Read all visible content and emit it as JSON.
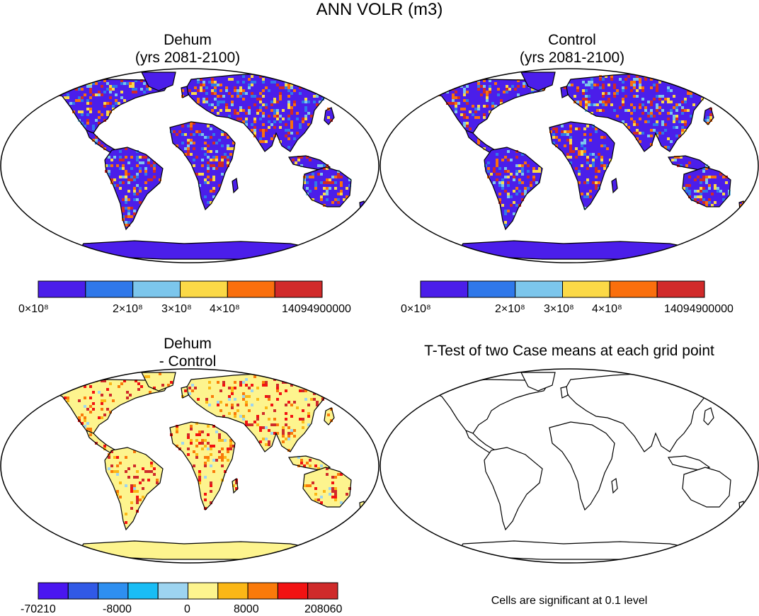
{
  "figure": {
    "title": "ANN VOLR (m3)"
  },
  "chart_data": [
    {
      "type": "heatmap",
      "title": "Dehum",
      "subtitle": "(yrs 2081-2100)",
      "variable": "ANN VOLR (m3)",
      "projection": "Robinson world map",
      "colorbar": {
        "colors": [
          "#4b1eea",
          "#2f78ea",
          "#7cc6ec",
          "#fbd947",
          "#fa6f0d",
          "#d12a2a"
        ],
        "tick_labels": [
          "0×10⁸",
          "2×10⁸",
          "3×10⁸",
          "4×10⁸",
          "14094900000"
        ]
      }
    },
    {
      "type": "heatmap",
      "title": "Control",
      "subtitle": "(yrs 2081-2100)",
      "variable": "ANN VOLR (m3)",
      "projection": "Robinson world map",
      "colorbar": {
        "colors": [
          "#4b1eea",
          "#2f78ea",
          "#7cc6ec",
          "#fbd947",
          "#fa6f0d",
          "#d12a2a"
        ],
        "tick_labels": [
          "0×10⁸",
          "2×10⁸",
          "3×10⁸",
          "4×10⁸",
          "14094900000"
        ]
      }
    },
    {
      "type": "heatmap",
      "title": "Dehum",
      "subtitle": "- Control",
      "variable": "difference",
      "projection": "Robinson world map",
      "colorbar": {
        "colors": [
          "#4a16f0",
          "#3159e6",
          "#2e8ff0",
          "#19bdf5",
          "#9dd4f0",
          "#fdf48e",
          "#fbb716",
          "#fa7a0a",
          "#f21212",
          "#cf2a2a"
        ],
        "tick_labels": [
          "-70210",
          "-8000",
          "0",
          "8000",
          "208060"
        ]
      }
    },
    {
      "type": "heatmap",
      "title": "T-Test of two Case means at each grid point",
      "projection": "Robinson world map",
      "note": "Cells are significant at 0.1 level"
    }
  ]
}
